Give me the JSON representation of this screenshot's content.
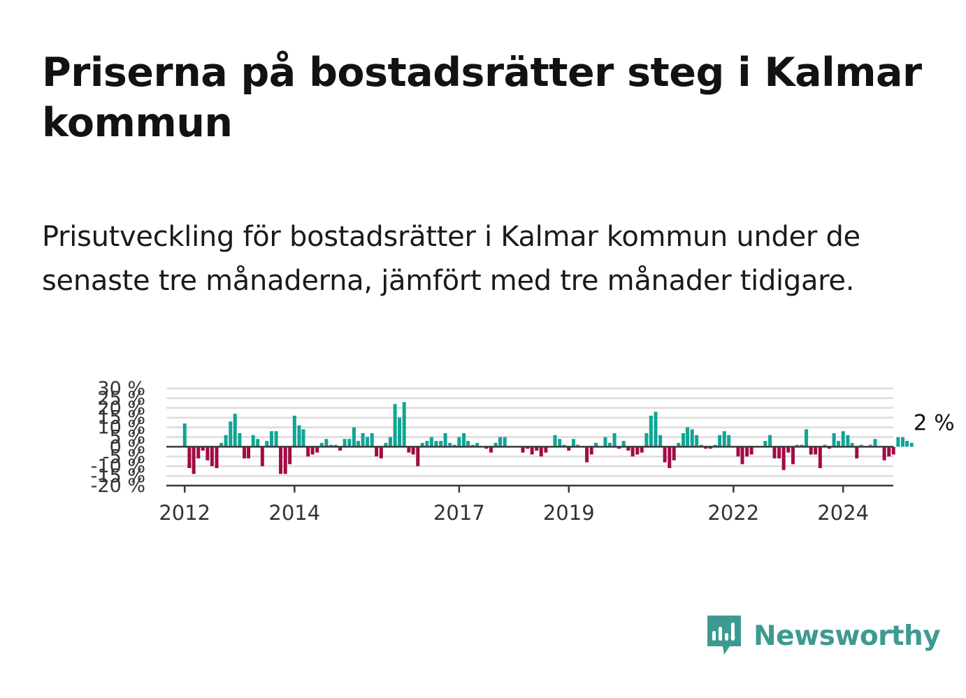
{
  "title": "Priserna på bostadsrätter steg i Kalmar kommun",
  "subtitle": "Prisutveckling för bostadsrätter i Kalmar kommun under de senaste tre månaderna, jämfört med tre månader tidigare.",
  "brand": {
    "name": "Newsworthy",
    "icon": "newsworthy-logo-icon"
  },
  "colors": {
    "positive": "#0ea595",
    "negative": "#a10b45",
    "grid": "#dcdcdc",
    "axis": "#3a3a3a",
    "brand": "#3d9a91"
  },
  "chart_data": {
    "type": "bar",
    "y_unit": "%",
    "ylim": [
      -20,
      30
    ],
    "yticks": [
      30,
      25,
      20,
      15,
      10,
      5,
      0,
      -5,
      -10,
      -15,
      -20
    ],
    "ytick_labels": [
      "30 %",
      "25 %",
      "20 %",
      "15 %",
      "10 %",
      "5 %",
      "0 %",
      "-5 %",
      "-10 %",
      "-15 %",
      "-20 %"
    ],
    "xlim": [
      "2011-09-01",
      "2024-11-30"
    ],
    "xticks": [
      "2012",
      "2014",
      "2017",
      "2019",
      "2022",
      "2024"
    ],
    "grid": true,
    "annotation": {
      "text": "2 %",
      "target": "last"
    },
    "start_month": "2012-01",
    "values": [
      12,
      -11,
      -14,
      -6,
      -2,
      -7,
      -10,
      -11,
      2,
      6,
      13,
      17,
      7,
      -6,
      -6,
      6,
      4,
      -10,
      3,
      8,
      8,
      -14,
      -14,
      -9,
      16,
      11,
      9,
      -5,
      -4,
      -3,
      2,
      4,
      1,
      1,
      -2,
      4,
      4,
      10,
      3,
      7,
      5,
      7,
      -5,
      -6,
      2,
      5,
      22,
      15,
      23,
      -3,
      -4,
      -10,
      2,
      3,
      5,
      3,
      3,
      7,
      2,
      1,
      5,
      7,
      3,
      1,
      2,
      0,
      -1,
      -3,
      2,
      5,
      5,
      0,
      0,
      0,
      -3,
      -1,
      -4,
      -2,
      -5,
      -3,
      0,
      6,
      4,
      1,
      -2,
      4,
      1,
      0,
      -8,
      -4,
      2,
      0,
      5,
      2,
      7,
      -1,
      3,
      -2,
      -5,
      -4,
      -3,
      7,
      16,
      18,
      6,
      -8,
      -11,
      -7,
      2,
      7,
      10,
      9,
      6,
      1,
      -1,
      -1,
      1,
      6,
      8,
      6,
      0,
      -5,
      -9,
      -5,
      -4,
      0,
      0,
      3,
      6,
      -6,
      -6,
      -12,
      -3,
      -9,
      1,
      1,
      9,
      -4,
      -4,
      -11,
      1,
      -1,
      7,
      3,
      8,
      6,
      2,
      -6,
      1,
      0,
      1,
      4,
      0,
      -7,
      -5,
      -4,
      5,
      5,
      3,
      2
    ]
  }
}
